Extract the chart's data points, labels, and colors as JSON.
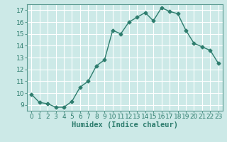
{
  "x": [
    0,
    1,
    2,
    3,
    4,
    5,
    6,
    7,
    8,
    9,
    10,
    11,
    12,
    13,
    14,
    15,
    16,
    17,
    18,
    19,
    20,
    21,
    22,
    23
  ],
  "y": [
    9.9,
    9.2,
    9.1,
    8.8,
    8.8,
    9.3,
    10.5,
    11.0,
    12.3,
    12.8,
    15.3,
    15.0,
    16.0,
    16.4,
    16.8,
    16.1,
    17.2,
    16.9,
    16.7,
    15.3,
    14.2,
    13.9,
    13.6,
    12.5
  ],
  "line_color": "#2e7d6e",
  "marker": "D",
  "marker_size": 2.5,
  "bg_color": "#cce9e7",
  "grid_color": "#ffffff",
  "xlabel": "Humidex (Indice chaleur)",
  "xlabel_fontsize": 7.5,
  "xlim": [
    -0.5,
    23.5
  ],
  "ylim": [
    8.5,
    17.5
  ],
  "yticks": [
    9,
    10,
    11,
    12,
    13,
    14,
    15,
    16,
    17
  ],
  "xtick_labels": [
    "0",
    "1",
    "2",
    "3",
    "4",
    "5",
    "6",
    "7",
    "8",
    "9",
    "10",
    "11",
    "12",
    "13",
    "14",
    "15",
    "16",
    "17",
    "18",
    "19",
    "20",
    "21",
    "22",
    "23"
  ],
  "tick_fontsize": 6.5,
  "line_width": 1.0
}
